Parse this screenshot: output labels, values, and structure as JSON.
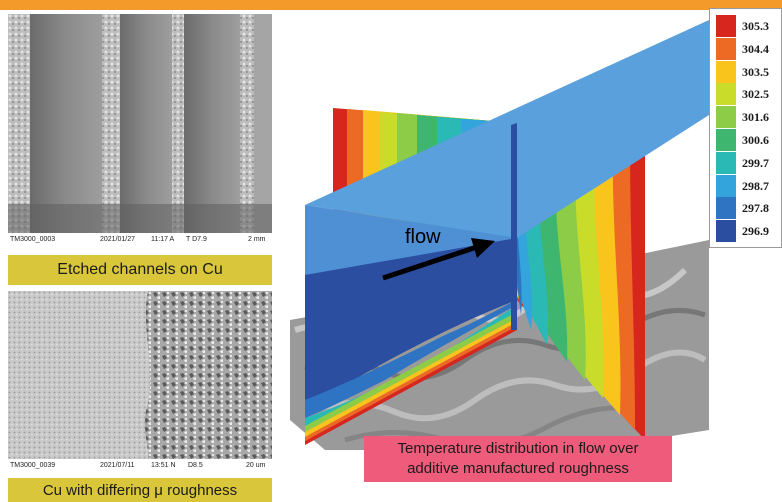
{
  "top_panel": {
    "footer": {
      "left": "TM3000_0003",
      "date": "2021/01/27",
      "time": "11:17 A",
      "detector": "T D7.9",
      "scale": "2 mm"
    },
    "caption": "Etched channels on Cu",
    "caption_color": "#d9c63a"
  },
  "bottom_panel": {
    "footer": {
      "left": "TM3000_0039",
      "date": "2021/07/11",
      "time": "13:51 N",
      "detector": "D8.5",
      "scale": "20 um"
    },
    "caption": "Cu with differing μ roughness",
    "caption_color": "#d9c63a"
  },
  "simulation": {
    "flow_label": "flow",
    "caption": "Temperature distribution in flow over additive manufactured roughness",
    "caption_color": "#ef5b7b"
  },
  "legend": {
    "entries": [
      {
        "label": "305.3",
        "color": "#d7261e"
      },
      {
        "label": "304.4",
        "color": "#ec6a24"
      },
      {
        "label": "303.5",
        "color": "#f9c41c"
      },
      {
        "label": "302.5",
        "color": "#c9dc2a"
      },
      {
        "label": "301.6",
        "color": "#8ccc47"
      },
      {
        "label": "300.6",
        "color": "#3fb66f"
      },
      {
        "label": "299.7",
        "color": "#2ab9b4"
      },
      {
        "label": "298.7",
        "color": "#33a4dc"
      },
      {
        "label": "297.8",
        "color": "#2f74c3"
      },
      {
        "label": "296.9",
        "color": "#2b4ea1"
      }
    ]
  },
  "accent_color": "#f39a2b"
}
